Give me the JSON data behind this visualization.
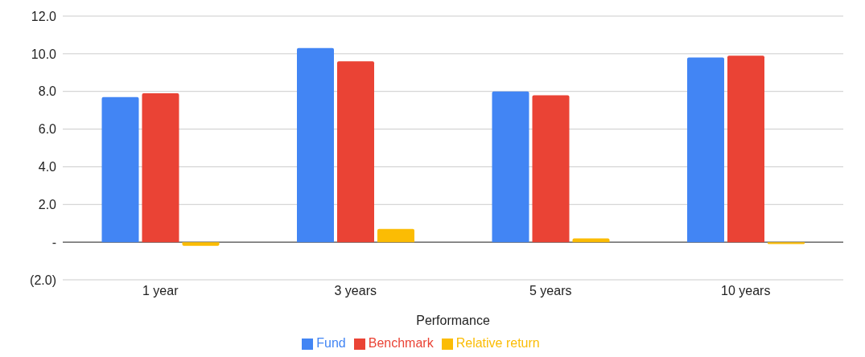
{
  "chart_data": {
    "type": "bar",
    "xlabel": "Performance",
    "categories": [
      "1 year",
      "3 years",
      "5 years",
      "10 years"
    ],
    "series": [
      {
        "name": "Fund",
        "color": "#4285f4",
        "values": [
          7.7,
          10.3,
          8.0,
          9.8
        ]
      },
      {
        "name": "Benchmark",
        "color": "#ea4335",
        "values": [
          7.9,
          9.6,
          7.8,
          9.9
        ]
      },
      {
        "name": "Relative return",
        "color": "#fbbc04",
        "values": [
          -0.2,
          0.7,
          0.2,
          -0.1
        ]
      }
    ],
    "ylim": [
      -2,
      12
    ],
    "yticks": [
      {
        "value": -2,
        "label": "(2.0)"
      },
      {
        "value": 0,
        "label": "-"
      },
      {
        "value": 2,
        "label": "2.0"
      },
      {
        "value": 4,
        "label": "4.0"
      },
      {
        "value": 6,
        "label": "6.0"
      },
      {
        "value": 8,
        "label": "8.0"
      },
      {
        "value": 10,
        "label": "10.0"
      },
      {
        "value": 12,
        "label": "12.0"
      }
    ],
    "grid": "y",
    "legend": "bottom"
  }
}
